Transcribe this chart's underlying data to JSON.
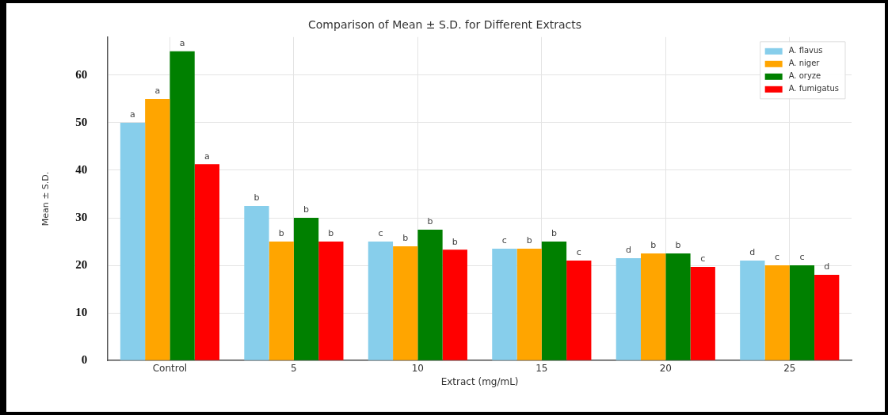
{
  "chart_data": {
    "type": "bar",
    "title": "Comparison of Mean ± S.D. for Different Extracts",
    "xlabel": "Extract (mg/mL)",
    "ylabel": "Mean ± S.D.",
    "categories": [
      "Control",
      "5",
      "10",
      "15",
      "20",
      "25"
    ],
    "series": [
      {
        "name": "A. flavus",
        "color": "#87ceeb",
        "values": [
          50,
          32.5,
          25,
          23.5,
          21.5,
          21
        ],
        "value_labels": [
          "a",
          "b",
          "c",
          "c",
          "d",
          "d"
        ]
      },
      {
        "name": "A. niger",
        "color": "#ffa500",
        "values": [
          55,
          25,
          24,
          23.5,
          22.5,
          20
        ],
        "value_labels": [
          "a",
          "b",
          "b",
          "b",
          "b",
          "c"
        ]
      },
      {
        "name": "A. oryze",
        "color": "#008000",
        "values": [
          65,
          30,
          27.5,
          25,
          22.5,
          20
        ],
        "value_labels": [
          "a",
          "b",
          "b",
          "b",
          "b",
          "c"
        ]
      },
      {
        "name": "A. fumigatus",
        "color": "#ff0000",
        "values": [
          41.3,
          25,
          23.3,
          21,
          19.7,
          18
        ],
        "value_labels": [
          "a",
          "b",
          "b",
          "c",
          "c",
          "d"
        ]
      }
    ],
    "ylim": [
      0,
      68
    ],
    "yticks": [
      0,
      10,
      20,
      30,
      40,
      50,
      60
    ],
    "grid": true,
    "legend": "top right"
  }
}
